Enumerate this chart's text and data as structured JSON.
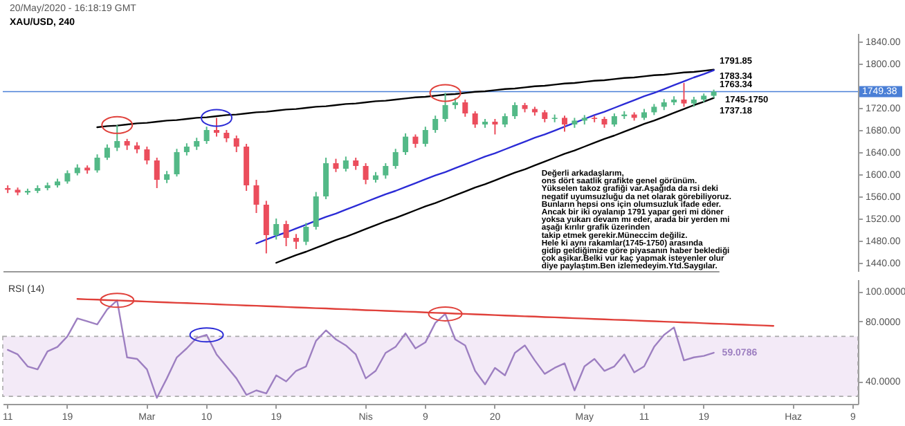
{
  "chart_data": [
    {
      "type": "candlestick",
      "title": "XAU/USD, 240",
      "annotations": [
        "20/May/2020 - 16:18:19 GMT",
        "Değerli arkadaşlarım,\nons dört saatlik grafikte genel görünüm.\nYükselen takoz grafiği var.Aşağıda da rsi deki\n negatif uyumsuzluğu da net olarak görebiliyoruz.\nBunların hepsi ons için olumsuzluk ifade eder.\nAncak  bir iki oyalanıp 1791 yapar geri mi döner\nyoksa yukarı devam mı eder, arada bir yerden mi\naşağı kırılır grafik üzerinden\n takip etmek gerekir.Müneccim değiliz.\nHele ki aynı rakamlar(1745-1750) arasında\n gidip geldiğimize göre piyasanın haber beklediği\n çok aşikar.Belki vur kaç yapmak isteyenler olur\ndiye paylaştım.Ben izlemedeyim.Ytd.Saygılar.",
        "1791.85",
        "1783.34",
        "1763.34",
        "1745-1750",
        "1737.18"
      ],
      "categories": [
        null,
        null,
        null,
        null,
        null,
        null,
        null,
        null,
        null,
        null,
        null,
        null,
        null,
        null,
        null,
        null,
        null,
        null,
        null,
        null,
        null,
        null,
        null,
        null,
        null,
        null,
        null,
        null,
        null,
        null,
        null,
        null,
        null,
        null,
        null,
        null,
        null,
        null,
        null,
        null,
        null,
        null,
        null,
        null,
        null,
        null,
        null,
        null,
        null,
        null,
        null,
        null,
        null,
        null,
        null,
        null,
        null,
        null,
        null,
        null,
        null,
        null,
        null,
        null,
        null,
        null,
        null,
        null,
        null,
        null,
        null,
        null
      ],
      "ohlc": [
        [
          1575,
          1580,
          1566,
          1572
        ],
        [
          1572,
          1576,
          1562,
          1567
        ],
        [
          1567,
          1574,
          1563,
          1570
        ],
        [
          1570,
          1580,
          1566,
          1575
        ],
        [
          1575,
          1585,
          1571,
          1580
        ],
        [
          1580,
          1592,
          1576,
          1587
        ],
        [
          1587,
          1607,
          1583,
          1602
        ],
        [
          1602,
          1618,
          1598,
          1612
        ],
        [
          1612,
          1616,
          1601,
          1607
        ],
        [
          1607,
          1636,
          1603,
          1630
        ],
        [
          1630,
          1654,
          1626,
          1648
        ],
        [
          1648,
          1689,
          1642,
          1660
        ],
        [
          1660,
          1664,
          1644,
          1652
        ],
        [
          1652,
          1658,
          1638,
          1645
        ],
        [
          1645,
          1650,
          1618,
          1625
        ],
        [
          1625,
          1630,
          1575,
          1590
        ],
        [
          1590,
          1606,
          1584,
          1600
        ],
        [
          1600,
          1646,
          1596,
          1640
        ],
        [
          1640,
          1656,
          1634,
          1650
        ],
        [
          1650,
          1666,
          1644,
          1660
        ],
        [
          1660,
          1686,
          1655,
          1680
        ],
        [
          1680,
          1702,
          1668,
          1675
        ],
        [
          1675,
          1680,
          1658,
          1665
        ],
        [
          1665,
          1670,
          1640,
          1650
        ],
        [
          1650,
          1655,
          1570,
          1580
        ],
        [
          1580,
          1590,
          1530,
          1545
        ],
        [
          1545,
          1552,
          1457,
          1490
        ],
        [
          1490,
          1520,
          1482,
          1510
        ],
        [
          1510,
          1516,
          1470,
          1485
        ],
        [
          1485,
          1492,
          1465,
          1478
        ],
        [
          1478,
          1512,
          1472,
          1505
        ],
        [
          1505,
          1568,
          1500,
          1560
        ],
        [
          1560,
          1630,
          1555,
          1620
        ],
        [
          1620,
          1628,
          1604,
          1610
        ],
        [
          1610,
          1632,
          1605,
          1625
        ],
        [
          1625,
          1630,
          1608,
          1615
        ],
        [
          1615,
          1620,
          1582,
          1590
        ],
        [
          1590,
          1604,
          1585,
          1598
        ],
        [
          1598,
          1620,
          1592,
          1615
        ],
        [
          1615,
          1646,
          1610,
          1640
        ],
        [
          1640,
          1674,
          1635,
          1668
        ],
        [
          1668,
          1672,
          1648,
          1655
        ],
        [
          1655,
          1686,
          1650,
          1680
        ],
        [
          1680,
          1706,
          1675,
          1700
        ],
        [
          1700,
          1747,
          1695,
          1725
        ],
        [
          1725,
          1738,
          1718,
          1730
        ],
        [
          1730,
          1735,
          1704,
          1710
        ],
        [
          1710,
          1714,
          1684,
          1690
        ],
        [
          1690,
          1700,
          1684,
          1695
        ],
        [
          1695,
          1700,
          1672,
          1690
        ],
        [
          1690,
          1710,
          1685,
          1705
        ],
        [
          1705,
          1730,
          1700,
          1725
        ],
        [
          1725,
          1729,
          1712,
          1718
        ],
        [
          1718,
          1722,
          1706,
          1712
        ],
        [
          1712,
          1716,
          1694,
          1700
        ],
        [
          1700,
          1708,
          1694,
          1702
        ],
        [
          1702,
          1706,
          1677,
          1690
        ],
        [
          1690,
          1702,
          1684,
          1697
        ],
        [
          1697,
          1707,
          1690,
          1702
        ],
        [
          1702,
          1706,
          1694,
          1700
        ],
        [
          1700,
          1704,
          1684,
          1690
        ],
        [
          1690,
          1710,
          1686,
          1705
        ],
        [
          1705,
          1714,
          1700,
          1708
        ],
        [
          1708,
          1712,
          1697,
          1702
        ],
        [
          1702,
          1718,
          1698,
          1712
        ],
        [
          1712,
          1727,
          1707,
          1722
        ],
        [
          1722,
          1736,
          1716,
          1730
        ],
        [
          1730,
          1741,
          1725,
          1735
        ],
        [
          1735,
          1765,
          1722,
          1728
        ],
        [
          1728,
          1740,
          1722,
          1735
        ],
        [
          1735,
          1746,
          1730,
          1742
        ],
        [
          1742,
          1753,
          1738,
          1749.38
        ]
      ],
      "colors": [
        "#eb4d5c",
        "#eb4d5c",
        "#53b987",
        "#53b987",
        "#53b987",
        "#53b987",
        "#53b987",
        "#53b987",
        "#eb4d5c",
        "#53b987",
        "#53b987",
        "#53b987",
        "#eb4d5c",
        "#eb4d5c",
        "#eb4d5c",
        "#eb4d5c",
        "#53b987",
        "#53b987",
        "#53b987",
        "#53b987",
        "#53b987",
        "#eb4d5c",
        "#eb4d5c",
        "#eb4d5c",
        "#eb4d5c",
        "#eb4d5c",
        "#eb4d5c",
        "#53b987",
        "#eb4d5c",
        "#eb4d5c",
        "#53b987",
        "#53b987",
        "#53b987",
        "#eb4d5c",
        "#53b987",
        "#eb4d5c",
        "#eb4d5c",
        "#53b987",
        "#53b987",
        "#53b987",
        "#53b987",
        "#eb4d5c",
        "#53b987",
        "#53b987",
        "#53b987",
        "#53b987",
        "#eb4d5c",
        "#eb4d5c",
        "#53b987",
        "#eb4d5c",
        "#53b987",
        "#53b987",
        "#eb4d5c",
        "#eb4d5c",
        "#eb4d5c",
        "#53b987",
        "#eb4d5c",
        "#53b987",
        "#53b987",
        "#eb4d5c",
        "#eb4d5c",
        "#53b987",
        "#53b987",
        "#eb4d5c",
        "#53b987",
        "#53b987",
        "#53b987",
        "#53b987",
        "#eb4d5c",
        "#53b987",
        "#53b987",
        "#53b987"
      ],
      "series": [
        {
          "type": "line",
          "color": "#000000",
          "values": [
            null,
            null,
            null,
            null,
            null,
            null,
            null,
            null,
            null,
            1685,
            1687,
            1688,
            1690,
            1692,
            1693,
            1695,
            1697,
            1698,
            1700,
            1702,
            1703,
            1705,
            1707,
            1708,
            1710,
            1712,
            1713,
            1715,
            1717,
            1718,
            1720,
            1722,
            1723,
            1725,
            1727,
            1728,
            1730,
            1732,
            1733,
            1735,
            1737,
            1739,
            1740,
            1742,
            1744,
            1745,
            1747,
            1749,
            1750,
            1752,
            1754,
            1755,
            1757,
            1759,
            1760,
            1762,
            1764,
            1765,
            1767,
            1769,
            1770,
            1772,
            1774,
            1775,
            1777,
            1779,
            1780,
            1782,
            1784,
            1785,
            1787,
            1789
          ]
        },
        {
          "type": "line",
          "color": "#2b2bd6",
          "values": [
            null,
            null,
            null,
            null,
            null,
            null,
            null,
            null,
            null,
            null,
            null,
            null,
            null,
            null,
            null,
            null,
            null,
            null,
            null,
            null,
            null,
            null,
            null,
            null,
            null,
            1475,
            1482,
            1489,
            1495,
            1502,
            1509,
            1516,
            1523,
            1529,
            1536,
            1543,
            1550,
            1557,
            1564,
            1570,
            1577,
            1584,
            1591,
            1598,
            1604,
            1611,
            1618,
            1625,
            1632,
            1638,
            1645,
            1652,
            1659,
            1666,
            1672,
            1679,
            1686,
            1693,
            1700,
            1707,
            1713,
            1720,
            1727,
            1734,
            1741,
            1747,
            1754,
            1761,
            1768,
            1775,
            1781,
            1788
          ]
        },
        {
          "type": "line",
          "color": "#000000",
          "values": [
            null,
            null,
            null,
            null,
            null,
            null,
            null,
            null,
            null,
            null,
            null,
            null,
            null,
            null,
            null,
            null,
            null,
            null,
            null,
            null,
            null,
            null,
            null,
            null,
            null,
            null,
            null,
            1440,
            1447,
            1454,
            1460,
            1467,
            1474,
            1481,
            1487,
            1494,
            1501,
            1508,
            1515,
            1521,
            1528,
            1535,
            1542,
            1548,
            1555,
            1562,
            1569,
            1576,
            1582,
            1589,
            1596,
            1603,
            1609,
            1616,
            1623,
            1630,
            1637,
            1643,
            1650,
            1657,
            1664,
            1670,
            1677,
            1684,
            1691,
            1697,
            1704,
            1711,
            1718,
            1725,
            1731,
            1738
          ]
        }
      ],
      "ylim": [
        1425,
        1855
      ],
      "yticks": [
        {
          "value": 1440,
          "label": "1440.00"
        },
        {
          "value": 1480,
          "label": "1480.00"
        },
        {
          "value": 1520,
          "label": "1520.00"
        },
        {
          "value": 1560,
          "label": "1560.00"
        },
        {
          "value": 1600,
          "label": "1600.00"
        },
        {
          "value": 1640,
          "label": "1640.00"
        },
        {
          "value": 1680,
          "label": "1680.00"
        },
        {
          "value": 1720,
          "label": "1720.00"
        },
        {
          "value": 1800,
          "label": "1800.00"
        },
        {
          "value": 1840,
          "label": "1840.00"
        }
      ],
      "ref_lines": [
        {
          "axis": "y",
          "value": 1749.38,
          "label": "1749.38",
          "color": "#4a7fd6"
        }
      ],
      "tick_labels": "y"
    },
    {
      "type": "line",
      "title": "RSI (14)",
      "categories": [
        "11",
        null,
        null,
        null,
        null,
        null,
        "19",
        null,
        null,
        null,
        null,
        null,
        null,
        null,
        "Mar",
        null,
        null,
        null,
        null,
        null,
        "10",
        null,
        null,
        null,
        null,
        null,
        null,
        "19",
        null,
        null,
        null,
        null,
        null,
        null,
        null,
        null,
        "Nis",
        null,
        null,
        null,
        null,
        null,
        "9",
        null,
        null,
        null,
        null,
        null,
        null,
        "20",
        null,
        null,
        null,
        null,
        null,
        null,
        null,
        null,
        "May",
        null,
        null,
        null,
        null,
        null,
        "11",
        null,
        null,
        null,
        null,
        null,
        "19",
        null,
        null,
        null,
        null,
        null,
        null,
        null,
        null,
        "Haz",
        null,
        null,
        null,
        null,
        null,
        "9"
      ],
      "series": [
        {
          "color": "#9d7fc1",
          "values": [
            61,
            58,
            50,
            48,
            60,
            63,
            70,
            82,
            80,
            78,
            88,
            94,
            56,
            55,
            48,
            29,
            42,
            56,
            62,
            69,
            71,
            58,
            50,
            42,
            31,
            34,
            32,
            44,
            40,
            47,
            50,
            67,
            74,
            68,
            64,
            58,
            42,
            47,
            59,
            63,
            72,
            62,
            66,
            79,
            85,
            68,
            64,
            47,
            38,
            49,
            44,
            59,
            64,
            54,
            45,
            49,
            52,
            34,
            50,
            55,
            47,
            50,
            58,
            46,
            50,
            63,
            71,
            76,
            54,
            56,
            57,
            59.0786,
            null,
            null,
            null,
            null,
            null,
            null,
            null,
            null,
            null,
            null,
            null,
            null,
            null,
            null
          ],
          "value_labels": [
            null,
            null,
            null,
            null,
            null,
            null,
            null,
            null,
            null,
            null,
            null,
            null,
            null,
            null,
            null,
            null,
            null,
            null,
            null,
            null,
            null,
            null,
            null,
            null,
            null,
            null,
            null,
            null,
            null,
            null,
            null,
            null,
            null,
            null,
            null,
            null,
            null,
            null,
            null,
            null,
            null,
            null,
            null,
            null,
            null,
            null,
            null,
            null,
            null,
            null,
            null,
            null,
            null,
            null,
            null,
            null,
            null,
            null,
            null,
            null,
            null,
            null,
            null,
            null,
            null,
            null,
            null,
            null,
            null,
            null,
            null,
            "59.0786",
            null,
            null,
            null,
            null,
            null,
            null,
            null,
            null,
            null,
            null,
            null,
            null,
            null,
            null
          ]
        },
        {
          "type": "line",
          "color": "#e0403a",
          "values": [
            null,
            null,
            null,
            null,
            null,
            null,
            null,
            95.0,
            94.7,
            94.5,
            94.2,
            94.0,
            93.7,
            93.5,
            93.2,
            92.9,
            92.7,
            92.4,
            92.2,
            91.9,
            91.7,
            91.4,
            91.1,
            90.9,
            90.6,
            90.4,
            90.1,
            89.9,
            89.6,
            89.3,
            89.1,
            88.8,
            88.6,
            88.3,
            88.1,
            87.8,
            87.5,
            87.3,
            87.0,
            86.8,
            86.5,
            86.3,
            86.0,
            85.7,
            85.5,
            85.2,
            85.0,
            84.7,
            84.5,
            84.2,
            83.9,
            83.7,
            83.4,
            83.2,
            82.9,
            82.7,
            82.4,
            82.1,
            81.9,
            81.6,
            81.4,
            81.1,
            80.9,
            80.6,
            80.3,
            80.1,
            79.8,
            79.6,
            79.3,
            79.1,
            78.8,
            78.5,
            78.3,
            78.0,
            77.8,
            77.5,
            77.3,
            77.0,
            null,
            null,
            null,
            null,
            null,
            null,
            null,
            null
          ]
        }
      ],
      "bands": [
        {
          "axis": "y",
          "from": 30,
          "to": 70,
          "color": "#f3eaf7"
        }
      ],
      "ylim": [
        25,
        108
      ],
      "yticks": [
        {
          "value": 40,
          "label": "40.0000"
        },
        {
          "value": 80,
          "label": "80.0000"
        },
        {
          "value": 100,
          "label": "100.0000"
        }
      ]
    }
  ]
}
